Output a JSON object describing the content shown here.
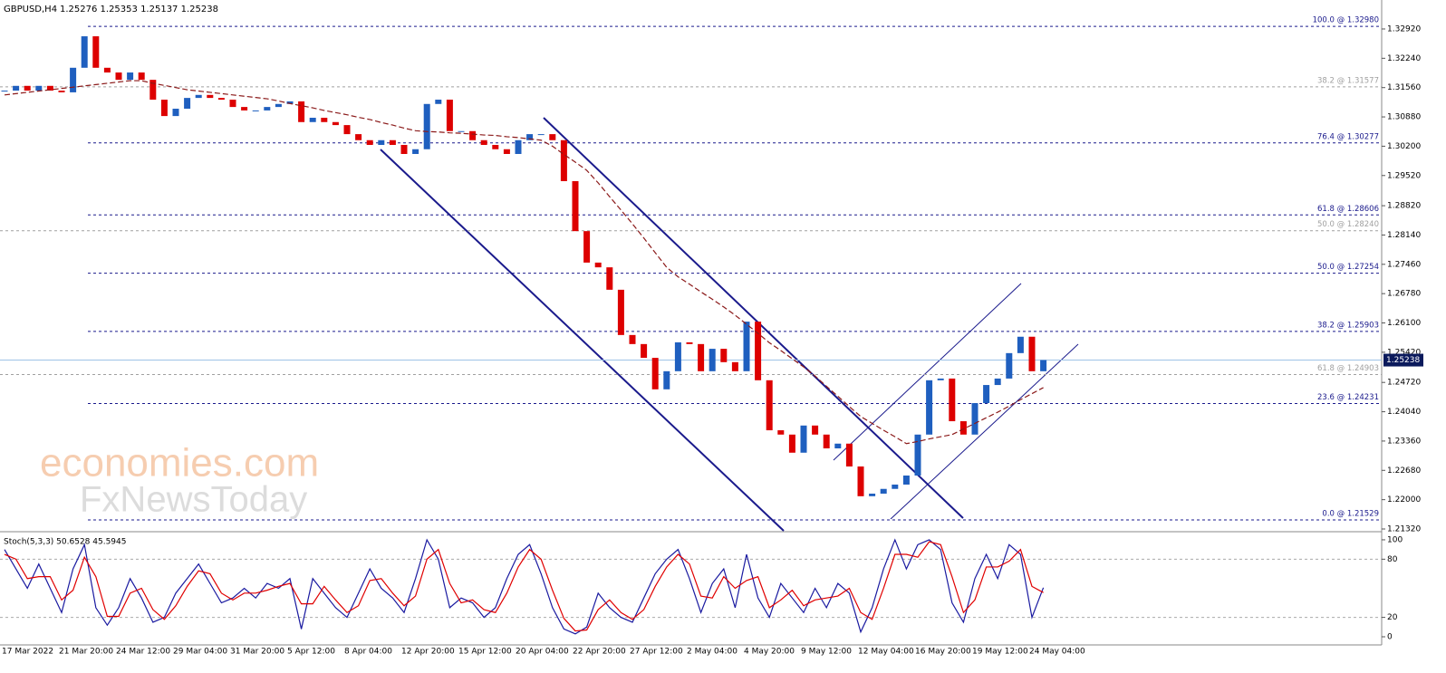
{
  "chart_data": [
    {
      "type": "candlestick",
      "title": "GBPUSD,H4",
      "subtitle": "1.25276 1.25353 1.25137 1.25238",
      "watermark": [
        "economies.com",
        "FxNewsToday"
      ],
      "x": [
        "17 Mar 2022",
        null,
        null,
        null,
        null,
        "21 Mar 20:00",
        null,
        null,
        null,
        null,
        "24 Mar 12:00",
        null,
        null,
        null,
        null,
        "29 Mar 04:00",
        null,
        null,
        null,
        null,
        "31 Mar 20:00",
        null,
        null,
        null,
        null,
        "5 Apr 12:00",
        null,
        null,
        null,
        null,
        "8 Apr 04:00",
        null,
        null,
        null,
        null,
        "12 Apr 20:00",
        null,
        null,
        null,
        null,
        "15 Apr 12:00",
        null,
        null,
        null,
        null,
        "20 Apr 04:00",
        null,
        null,
        null,
        null,
        "22 Apr 20:00",
        null,
        null,
        null,
        null,
        "27 Apr 12:00",
        null,
        null,
        null,
        null,
        "2 May 04:00",
        null,
        null,
        null,
        null,
        "4 May 20:00",
        null,
        null,
        null,
        null,
        "9 May 12:00",
        null,
        null,
        null,
        null,
        "12 May 04:00",
        null,
        null,
        null,
        null,
        "16 May 20:00",
        null,
        null,
        null,
        null,
        "19 May 12:00",
        null,
        null,
        null,
        null,
        "24 May 04:00",
        null
      ],
      "series": [
        {
          "color_up": "#1f5fbf",
          "color_down": "#dd0000",
          "values": [
            1.3149,
            1.316,
            1.3149,
            1.316,
            1.3149,
            1.3145,
            1.3202,
            1.3275,
            1.3202,
            1.3191,
            1.3174,
            1.3191,
            1.3174,
            1.3128,
            1.309,
            1.3107,
            1.3132,
            1.3139,
            1.3132,
            1.3128,
            1.3111,
            1.3103,
            1.3103,
            1.3111,
            1.3118,
            1.3124,
            1.3076,
            1.3086,
            1.3076,
            1.3069,
            1.3048,
            1.3034,
            1.3023,
            1.3034,
            1.3023,
            1.3002,
            1.3013,
            1.3118,
            1.3128,
            1.3055,
            1.3055,
            1.3034,
            1.3023,
            1.3013,
            1.3002,
            1.3034,
            1.3048,
            1.3048,
            1.3034,
            1.2939,
            1.2823,
            1.275,
            1.2739,
            1.2687,
            1.2582,
            1.2561,
            1.2529,
            1.2456,
            1.2498,
            1.2565,
            1.2561,
            1.2498,
            1.255,
            1.2519,
            1.2498,
            1.2613,
            1.2477,
            1.2361,
            1.2351,
            1.2309,
            1.2372,
            1.2351,
            1.2319,
            1.233,
            1.2277,
            1.2208,
            1.2214,
            1.2225,
            1.2235,
            1.2256,
            1.2351,
            1.2477,
            1.2481,
            1.2382,
            1.2351,
            1.2424,
            1.2466,
            1.2481,
            1.254,
            1.2578,
            1.2498,
            1.25238
          ]
        },
        {
          "color": "#8b1a1a",
          "values": [
            1.3139,
            1.3142,
            1.3145,
            1.3148,
            1.3151,
            1.3154,
            1.3157,
            1.316,
            1.3163,
            1.3166,
            1.3169,
            1.3172,
            1.3172,
            1.3166,
            1.3161,
            1.3156,
            1.3151,
            1.3148,
            1.3145,
            1.3142,
            1.3139,
            1.3136,
            1.3133,
            1.313,
            1.3125,
            1.3119,
            1.3114,
            1.3109,
            1.3103,
            1.3098,
            1.3093,
            1.3087,
            1.3082,
            1.3075,
            1.3069,
            1.3062,
            1.3056,
            1.3054,
            1.3053,
            1.3051,
            1.305,
            1.3048,
            1.3046,
            1.3045,
            1.3042,
            1.304,
            1.3037,
            1.3034,
            1.302,
            1.3001,
            1.2983,
            1.2964,
            1.2935,
            1.2903,
            1.2872,
            1.284,
            1.2807,
            1.2773,
            1.2739,
            1.2717,
            1.27,
            1.2682,
            1.2665,
            1.2647,
            1.2628,
            1.2607,
            1.2586,
            1.2564,
            1.2546,
            1.2527,
            1.2508,
            1.2487,
            1.2463,
            1.244,
            1.2416,
            1.2393,
            1.2377,
            1.2361,
            1.2346,
            1.233,
            1.2335,
            1.2341,
            1.2346,
            1.2351,
            1.2364,
            1.2377,
            1.239,
            1.2403,
            1.2417,
            1.2432,
            1.2446,
            1.246
          ]
        }
      ],
      "ylim": [
        1.21278,
        1.33592
      ],
      "yticks": [
        {
          "value": 1.3292,
          "label": "1.32920"
        },
        {
          "value": 1.3224,
          "label": "1.32240"
        },
        {
          "value": 1.3156,
          "label": "1.31560"
        },
        {
          "value": 1.3088,
          "label": "1.30880"
        },
        {
          "value": 1.302,
          "label": "1.30200"
        },
        {
          "value": 1.2952,
          "label": "1.29520"
        },
        {
          "value": 1.2882,
          "label": "1.28820"
        },
        {
          "value": 1.2814,
          "label": "1.28140"
        },
        {
          "value": 1.2746,
          "label": "1.27460"
        },
        {
          "value": 1.2678,
          "label": "1.26780"
        },
        {
          "value": 1.261,
          "label": "1.26100"
        },
        {
          "value": 1.2542,
          "label": "1.25420"
        },
        {
          "value": 1.2472,
          "label": "1.24720"
        },
        {
          "value": 1.2404,
          "label": "1.24040"
        },
        {
          "value": 1.2336,
          "label": "1.23360"
        },
        {
          "value": 1.2268,
          "label": "1.22680"
        },
        {
          "value": 1.22,
          "label": "1.22000"
        },
        {
          "value": 1.2132,
          "label": "1.21320"
        }
      ],
      "current_price": 1.25238,
      "levels": [
        {
          "label": "100.0 @ 1.32980",
          "value": 1.3298,
          "color": "#1a1a8c"
        },
        {
          "label": "38.2 @ 1.31577",
          "value": 1.31577,
          "color": "#a0a0a0"
        },
        {
          "label": "76.4 @ 1.30277",
          "value": 1.30277,
          "color": "#1a1a8c"
        },
        {
          "label": "61.8 @ 1.28606",
          "value": 1.28606,
          "color": "#1a1a8c"
        },
        {
          "label": "50.0 @ 1.28240",
          "value": 1.2824,
          "color": "#a0a0a0"
        },
        {
          "label": "50.0 @ 1.27254",
          "value": 1.27254,
          "color": "#1a1a8c"
        },
        {
          "label": "38.2 @ 1.25903",
          "value": 1.25903,
          "color": "#1a1a8c"
        },
        {
          "label": "61.8 @ 1.24903",
          "value": 1.24903,
          "color": "#a0a0a0"
        },
        {
          "label": "23.6 @ 1.24231",
          "value": 1.24231,
          "color": "#1a1a8c"
        },
        {
          "label": "0.0 @ 1.21529",
          "value": 1.21529,
          "color": "#1a1a8c"
        }
      ]
    },
    {
      "type": "line",
      "title": "Stoch(5,3,3) 50.6528 45.5945",
      "series": [
        {
          "color": "#1a1aa0",
          "values": [
            90,
            70,
            50,
            75,
            50,
            25,
            70,
            95,
            30,
            12,
            30,
            60,
            40,
            15,
            20,
            45,
            60,
            75,
            55,
            35,
            40,
            50,
            40,
            55,
            50,
            60,
            8,
            60,
            45,
            30,
            20,
            45,
            70,
            50,
            40,
            25,
            60,
            100,
            80,
            30,
            40,
            35,
            20,
            30,
            60,
            85,
            95,
            65,
            30,
            8,
            3,
            10,
            45,
            30,
            20,
            15,
            40,
            65,
            80,
            90,
            60,
            25,
            55,
            70,
            30,
            85,
            40,
            20,
            55,
            40,
            25,
            50,
            30,
            55,
            45,
            5,
            30,
            70,
            100,
            70,
            95,
            100,
            90,
            35,
            15,
            60,
            85,
            60,
            95,
            85,
            20,
            50.6528
          ]
        },
        {
          "color": "#e00000",
          "values": [
            85,
            80,
            60,
            62,
            62,
            38,
            48,
            82,
            62,
            21,
            21,
            45,
            50,
            28,
            18,
            32,
            52,
            68,
            65,
            45,
            38,
            45,
            45,
            48,
            52,
            55,
            34,
            34,
            52,
            38,
            25,
            32,
            58,
            60,
            45,
            32,
            42,
            80,
            90,
            55,
            35,
            38,
            28,
            25,
            45,
            72,
            90,
            80,
            48,
            19,
            6,
            7,
            28,
            38,
            25,
            18,
            28,
            52,
            72,
            85,
            75,
            42,
            40,
            62,
            50,
            58,
            62,
            30,
            38,
            48,
            32,
            38,
            40,
            42,
            50,
            25,
            18,
            50,
            85,
            85,
            82,
            98,
            95,
            62,
            25,
            38,
            72,
            72,
            78,
            90,
            52,
            45.5945
          ]
        }
      ],
      "ylim": [
        -8.4,
        106.5
      ],
      "yticks": [
        0,
        20,
        80,
        100
      ]
    }
  ]
}
